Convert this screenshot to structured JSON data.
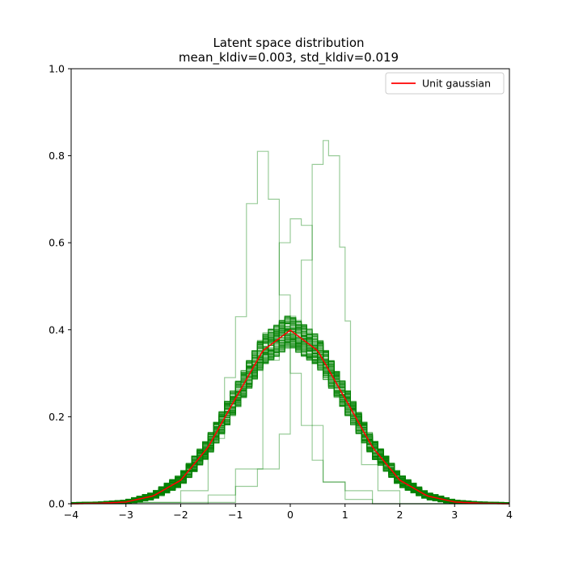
{
  "chart_data": {
    "type": "line",
    "title": "Latent space distribution",
    "subtitle": "mean_kldiv=0.003, std_kldiv=0.019",
    "xlabel": "",
    "ylabel": "",
    "xlim": [
      -4,
      4
    ],
    "ylim": [
      0,
      1.0
    ],
    "xticks": [
      "−4",
      "−3",
      "−2",
      "−1",
      "0",
      "1",
      "2",
      "3",
      "4"
    ],
    "yticks": [
      "0.0",
      "0.2",
      "0.4",
      "0.6",
      "0.8",
      "1.0"
    ],
    "grid": false,
    "legend": {
      "position": "top-right",
      "entries": [
        "Unit gaussian"
      ]
    },
    "series": [
      {
        "name": "Unit gaussian",
        "color": "#ff0000",
        "x": [
          -4.0,
          -3.5,
          -3.0,
          -2.5,
          -2.0,
          -1.5,
          -1.0,
          -0.5,
          0.0,
          0.5,
          1.0,
          1.5,
          2.0,
          2.5,
          3.0,
          3.5,
          4.0
        ],
        "y": [
          0.0,
          0.001,
          0.004,
          0.018,
          0.054,
          0.13,
          0.242,
          0.352,
          0.399,
          0.352,
          0.242,
          0.13,
          0.054,
          0.018,
          0.004,
          0.001,
          0.0
        ]
      }
    ],
    "histograms": {
      "color": "#008000",
      "bulk": {
        "description_count": 128,
        "x": [
          -4.0,
          -3.5,
          -3.0,
          -2.5,
          -2.0,
          -1.5,
          -1.0,
          -0.5,
          0.0,
          0.5,
          1.0,
          1.5,
          2.0,
          2.5,
          3.0,
          3.5,
          4.0
        ],
        "y": [
          0.0,
          0.001,
          0.004,
          0.018,
          0.054,
          0.13,
          0.242,
          0.352,
          0.399,
          0.352,
          0.242,
          0.13,
          0.054,
          0.018,
          0.004,
          0.001,
          0.0
        ],
        "spread": 0.05
      },
      "outliers": [
        {
          "edges": [
            -4.0,
            -3.0,
            -2.0,
            -1.5,
            -1.2,
            -1.0,
            -0.8,
            -0.6,
            -0.4,
            -0.2,
            0.0,
            0.2,
            0.4,
            0.6,
            1.0,
            1.5,
            4.0
          ],
          "heights": [
            0.0,
            0.003,
            0.03,
            0.15,
            0.29,
            0.43,
            0.69,
            0.81,
            0.7,
            0.48,
            0.3,
            0.18,
            0.1,
            0.05,
            0.03,
            0.0
          ]
        },
        {
          "edges": [
            -4.0,
            -1.0,
            -0.6,
            -0.2,
            0.0,
            0.2,
            0.4,
            0.6,
            0.7,
            0.9,
            1.0,
            1.1,
            1.3,
            1.6,
            2.0,
            4.0
          ],
          "heights": [
            0.003,
            0.04,
            0.08,
            0.16,
            0.36,
            0.56,
            0.78,
            0.835,
            0.8,
            0.59,
            0.42,
            0.2,
            0.09,
            0.03,
            0.0
          ]
        },
        {
          "edges": [
            -4.0,
            -1.5,
            -1.0,
            -0.5,
            -0.2,
            0.0,
            0.2,
            0.4,
            0.6,
            1.0,
            1.5,
            4.0
          ],
          "heights": [
            0.0,
            0.02,
            0.08,
            0.33,
            0.6,
            0.655,
            0.64,
            0.18,
            0.05,
            0.01,
            0.0
          ]
        }
      ]
    }
  }
}
